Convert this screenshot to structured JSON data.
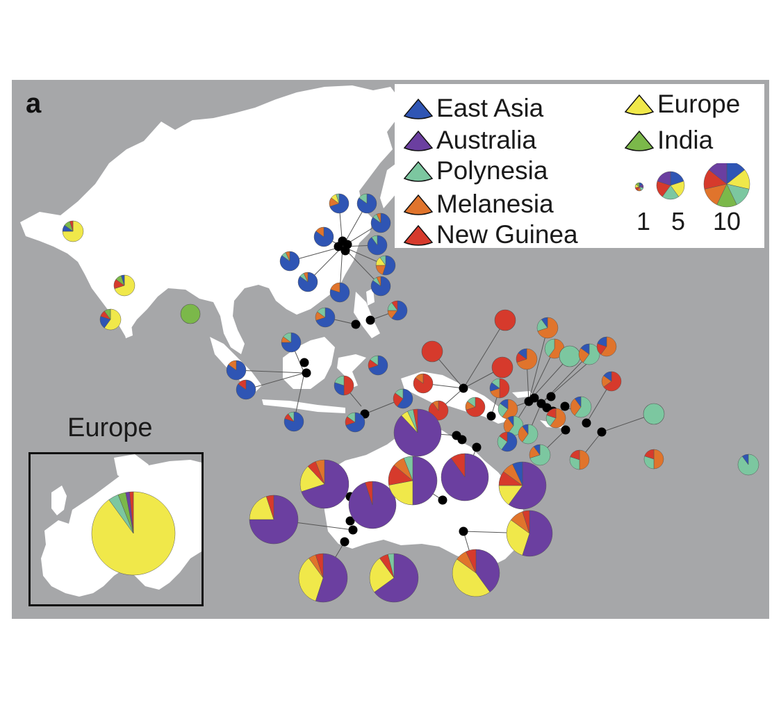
{
  "panel_label": "a",
  "legend": {
    "regions": [
      {
        "name": "East Asia",
        "color": "#2f55b4"
      },
      {
        "name": "Australia",
        "color": "#6b3fa0"
      },
      {
        "name": "Polynesia",
        "color": "#7cc7a0"
      },
      {
        "name": "Melanesia",
        "color": "#e0742c"
      },
      {
        "name": "New Guinea",
        "color": "#d63a2c"
      },
      {
        "name": "Europe",
        "color": "#f0e84a"
      },
      {
        "name": "India",
        "color": "#7bb84a"
      }
    ],
    "size_scale": [
      "1",
      "5",
      "10"
    ]
  },
  "inset": {
    "title": "Europe"
  },
  "icons": {
    "legend_marker": "triangle-icon",
    "sample_marker": "pie-icon",
    "site_marker": "dot-icon"
  },
  "colors": {
    "sea": "#a6a7a9",
    "land": "#ffffff",
    "site_dot": "#000000"
  }
}
